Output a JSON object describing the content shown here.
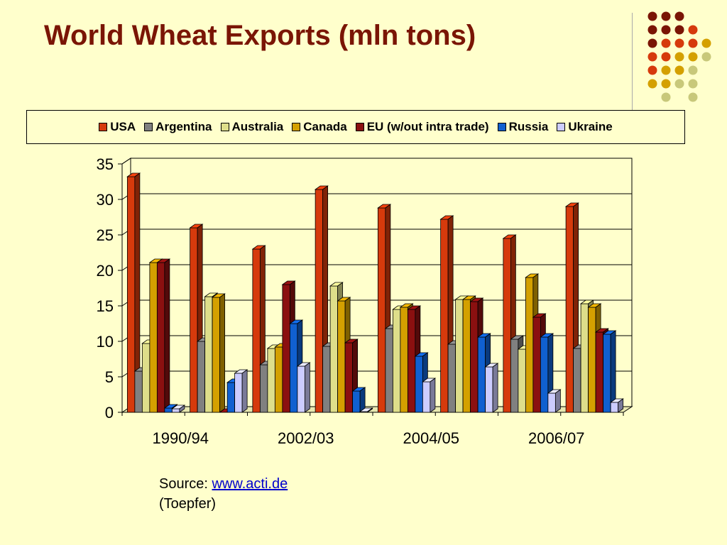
{
  "slide": {
    "title": "World Wheat Exports (mln tons)",
    "source_label": "Source: ",
    "source_link": "www.acti.de",
    "source_note": "(Toepfer)"
  },
  "colors": {
    "background": "#ffffcc",
    "title": "#7a1505",
    "dots": [
      "#7a1505",
      "#d63a0c",
      "#d4a000",
      "#c8c87a"
    ]
  },
  "chart_data": {
    "type": "bar",
    "title": "",
    "xlabel": "",
    "ylabel": "",
    "ylim": [
      0,
      35
    ],
    "y_ticks": [
      0,
      5,
      10,
      15,
      20,
      25,
      30,
      35
    ],
    "grid": true,
    "legend_position": "top",
    "categories": [
      "1990/94",
      "",
      "2002/03",
      "",
      "2004/05",
      "",
      "2006/07",
      ""
    ],
    "x_tick_labels": [
      "1990/94",
      "2002/03",
      "2004/05",
      "2006/07"
    ],
    "series": [
      {
        "name": "USA",
        "color": "#d63a0c",
        "values": [
          33.2,
          26,
          23,
          31.4,
          28.8,
          27.2,
          24.5,
          29
        ]
      },
      {
        "name": "Argentina",
        "color": "#808080",
        "values": [
          5.8,
          10,
          6.7,
          9.3,
          11.8,
          9.6,
          10.3,
          9
        ]
      },
      {
        "name": "Australia",
        "color": "#dede8a",
        "values": [
          9.7,
          16.3,
          9,
          17.8,
          14.5,
          15.9,
          8.9,
          15.3
        ]
      },
      {
        "name": "Canada",
        "color": "#d4a000",
        "values": [
          21.1,
          16.2,
          9.2,
          15.7,
          14.8,
          15.9,
          19,
          14.8
        ]
      },
      {
        "name": "EU (w/out intra trade)",
        "color": "#8b1010",
        "values": [
          21.1,
          0,
          18,
          9.8,
          14.5,
          15.6,
          13.4,
          11.3
        ]
      },
      {
        "name": "Russia",
        "color": "#1060d0",
        "values": [
          0.6,
          4.2,
          12.5,
          3,
          7.9,
          10.6,
          10.6,
          11
        ]
      },
      {
        "name": "Ukraine",
        "color": "#ccccff",
        "values": [
          0.5,
          5.5,
          6.5,
          0.1,
          4.3,
          6.4,
          2.7,
          1.4
        ]
      }
    ]
  }
}
